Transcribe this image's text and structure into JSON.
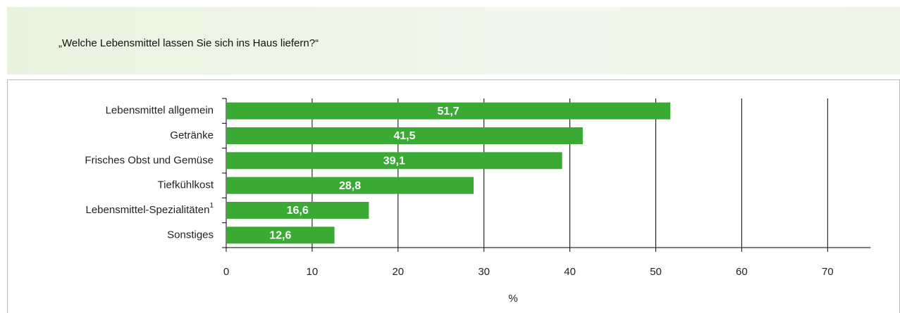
{
  "chart_data": {
    "type": "barh",
    "title": "„Welche Lebensmittel lassen Sie sich ins Haus liefern?“",
    "categories": [
      "Lebensmittel allgemein",
      "Getränke",
      "Frisches Obst und Gemüse",
      "Tiefkühlkost",
      "Lebensmittel-Spezialitäten",
      "Sonstiges"
    ],
    "category_footnotes": [
      null,
      null,
      null,
      null,
      "1",
      null
    ],
    "values": [
      51.7,
      41.5,
      39.1,
      28.8,
      16.6,
      12.6
    ],
    "value_labels": [
      "51,7",
      "41,5",
      "39,1",
      "28,8",
      "16,6",
      "12,6"
    ],
    "color": "#3aaa35",
    "x_label": "%",
    "xlim": [
      0,
      75
    ],
    "xticks": [
      0,
      10,
      20,
      30,
      40,
      50,
      60,
      70
    ],
    "grid": true
  }
}
